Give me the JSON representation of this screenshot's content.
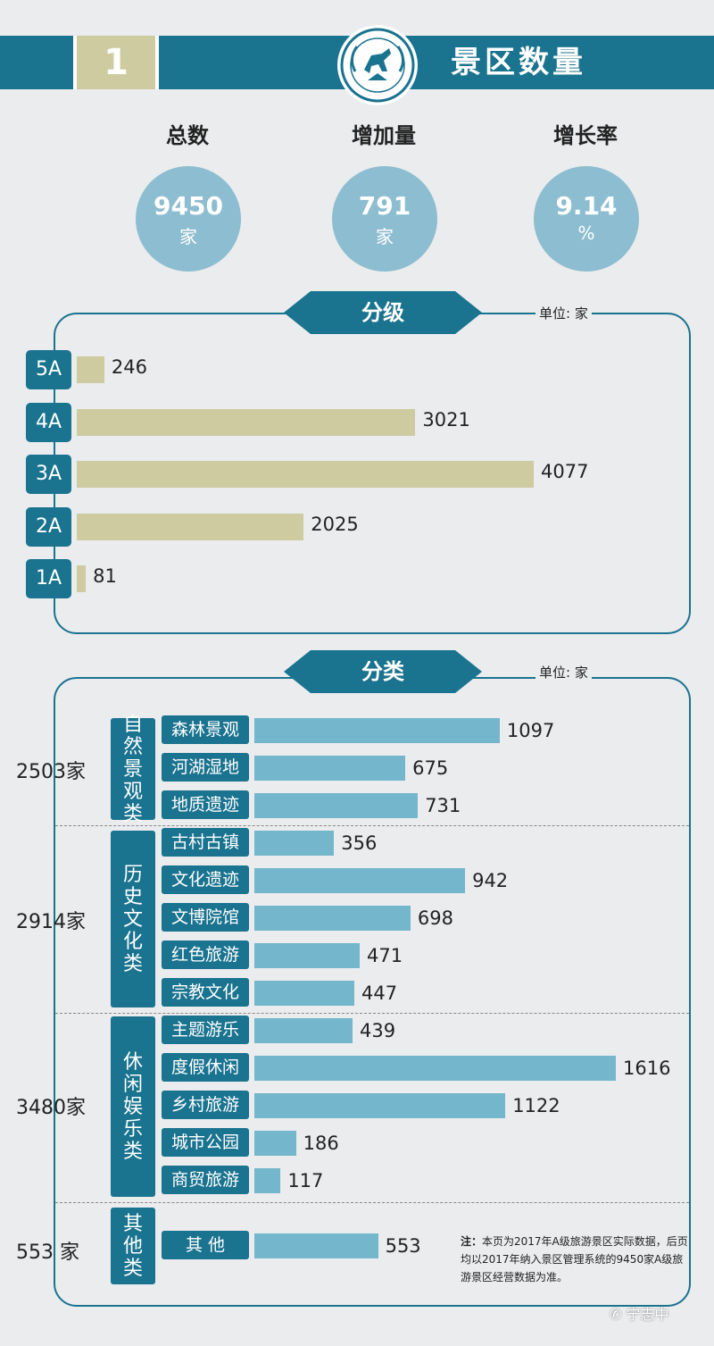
{
  "header": {
    "number": "1",
    "title": "景区数量",
    "logo_icon": "tourism-association-seal-icon"
  },
  "stats": [
    {
      "label": "总数",
      "value": "9450",
      "unit": "家"
    },
    {
      "label": "增加量",
      "value": "791",
      "unit": "家"
    },
    {
      "label": "增长率",
      "value": "9.14",
      "unit": "%"
    }
  ],
  "colors": {
    "primary": "#1a738f",
    "khaki": "#cdcb9f",
    "light_blue": "#74b6cb",
    "circle": "#8dbdd0"
  },
  "grade_section": {
    "title": "分级",
    "unit_note": "单位: 家"
  },
  "category_section": {
    "title": "分类",
    "unit_note": "单位: 家"
  },
  "chart_data": [
    {
      "type": "bar",
      "orientation": "horizontal",
      "title": "分级",
      "categories": [
        "5A",
        "4A",
        "3A",
        "2A",
        "1A"
      ],
      "values": [
        246,
        3021,
        4077,
        2025,
        81
      ],
      "xlim": [
        0,
        4077
      ],
      "grid": false
    },
    {
      "type": "bar",
      "orientation": "horizontal",
      "title": "分类",
      "groups": [
        {
          "name": "自然景观类",
          "total": "2503家",
          "categories": [
            "森林景观",
            "河湖湿地",
            "地质遗迹"
          ],
          "values": [
            1097,
            675,
            731
          ]
        },
        {
          "name": "历史文化类",
          "total": "2914家",
          "categories": [
            "古村古镇",
            "文化遗迹",
            "文博院馆",
            "红色旅游",
            "宗教文化"
          ],
          "values": [
            356,
            942,
            698,
            471,
            447
          ]
        },
        {
          "name": "休闲娱乐类",
          "total": "3480家",
          "categories": [
            "主题游乐",
            "度假休闲",
            "乡村旅游",
            "城市公园",
            "商贸旅游"
          ],
          "values": [
            439,
            1616,
            1122,
            186,
            117
          ]
        },
        {
          "name": "其他类",
          "total": "553 家",
          "categories": [
            "其 他"
          ],
          "values": [
            553
          ]
        }
      ],
      "xlim": [
        0,
        1616
      ],
      "grid": false
    }
  ],
  "note": {
    "prefix": "注：",
    "text": "本页为2017年A级旅游景区实际数据，后页均以2017年纳入景区管理系统的9450家A级旅游景区经营数据为准。"
  },
  "watermark": {
    "text": "宁志中",
    "icon": "wechat-icon"
  }
}
